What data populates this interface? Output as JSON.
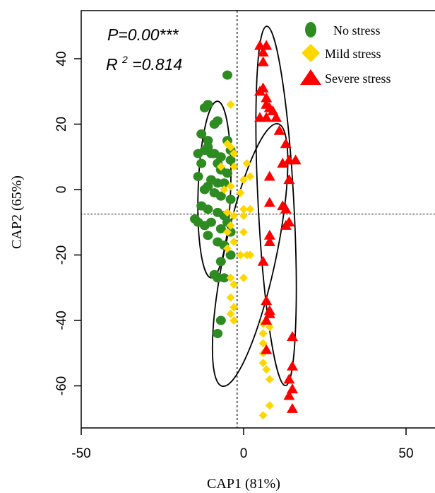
{
  "chart_data": {
    "type": "scatter",
    "title": "",
    "xlabel": "CAP1 (81%)",
    "ylabel": "CAP2 (65%)",
    "xlim": [
      -50,
      60
    ],
    "ylim": [
      -73,
      50
    ],
    "xticks": [
      -50,
      0,
      50
    ],
    "yticks": [
      -60,
      -40,
      -20,
      0,
      20,
      40
    ],
    "reference_lines": {
      "x": -2,
      "y": -7.5
    },
    "annotations": {
      "p_text": "P=0.00***",
      "r2_prefix": "R",
      "r2_sup": "2",
      "r2_value": "=0.814"
    },
    "legend": {
      "placement": "top-right"
    },
    "series": [
      {
        "name": "No stress",
        "marker": "circle",
        "color": "#2e8b22",
        "points": [
          [
            -5,
            35
          ],
          [
            -11,
            26
          ],
          [
            -12,
            25
          ],
          [
            -8,
            21
          ],
          [
            -9,
            20
          ],
          [
            -13,
            17
          ],
          [
            -11,
            15
          ],
          [
            -5,
            15
          ],
          [
            -11,
            13
          ],
          [
            -12,
            12
          ],
          [
            -14,
            11
          ],
          [
            -10,
            11
          ],
          [
            -9,
            11
          ],
          [
            -7,
            10
          ],
          [
            -4,
            12
          ],
          [
            -4,
            9
          ],
          [
            -13,
            8
          ],
          [
            -8,
            8
          ],
          [
            -7,
            6
          ],
          [
            -5,
            5
          ],
          [
            -14,
            4
          ],
          [
            -10,
            3
          ],
          [
            -8,
            2
          ],
          [
            -6,
            2
          ],
          [
            -11,
            1
          ],
          [
            -12,
            0
          ],
          [
            -9,
            -1
          ],
          [
            -7,
            -2
          ],
          [
            -4,
            -3
          ],
          [
            -13,
            -5
          ],
          [
            -11,
            -6
          ],
          [
            -8,
            -7
          ],
          [
            -6,
            -8
          ],
          [
            -15,
            -9
          ],
          [
            -14,
            -10
          ],
          [
            -12,
            -11
          ],
          [
            -10,
            -10
          ],
          [
            -5,
            -10
          ],
          [
            -7,
            -12
          ],
          [
            -4,
            -13
          ],
          [
            -11,
            -14
          ],
          [
            -8,
            -16
          ],
          [
            -6,
            -17
          ],
          [
            -4,
            -20
          ],
          [
            -7,
            -22
          ],
          [
            -9,
            -26
          ],
          [
            -8,
            -27
          ],
          [
            -6,
            -27
          ],
          [
            -7,
            -40
          ],
          [
            -8,
            -44
          ]
        ]
      },
      {
        "name": "Mild stress",
        "marker": "diamond",
        "color": "#ffd700",
        "points": [
          [
            -4,
            26
          ],
          [
            -5,
            14
          ],
          [
            -4,
            13
          ],
          [
            -3,
            11
          ],
          [
            -7,
            7
          ],
          [
            -3,
            7
          ],
          [
            1,
            8
          ],
          [
            -6,
            0
          ],
          [
            -4,
            1
          ],
          [
            -1,
            -1
          ],
          [
            0,
            3
          ],
          [
            2,
            4
          ],
          [
            0,
            -6
          ],
          [
            -5,
            -7
          ],
          [
            -3,
            -8
          ],
          [
            0,
            -8
          ],
          [
            2,
            -6
          ],
          [
            -4,
            -11
          ],
          [
            -5,
            -13
          ],
          [
            0,
            -13
          ],
          [
            -3,
            -16
          ],
          [
            -5,
            -18
          ],
          [
            1,
            -20
          ],
          [
            2,
            -20
          ],
          [
            -1,
            -20
          ],
          [
            -4,
            -27
          ],
          [
            -3,
            -29
          ],
          [
            0,
            -27
          ],
          [
            -4,
            -33
          ],
          [
            -3,
            -36
          ],
          [
            -4,
            -38
          ],
          [
            -3,
            -40
          ],
          [
            6,
            -41
          ],
          [
            8,
            -42
          ],
          [
            6,
            -44
          ],
          [
            6,
            -47
          ],
          [
            6,
            -50
          ],
          [
            6,
            -53
          ],
          [
            7,
            -55
          ],
          [
            8,
            -58
          ],
          [
            6,
            -69
          ],
          [
            8,
            -66
          ]
        ]
      },
      {
        "name": "Severe stress",
        "marker": "triangle",
        "color": "#ff0000",
        "points": [
          [
            5,
            44
          ],
          [
            6,
            42
          ],
          [
            7,
            44
          ],
          [
            6,
            39
          ],
          [
            6,
            31
          ],
          [
            5,
            30
          ],
          [
            7,
            28
          ],
          [
            7,
            26
          ],
          [
            8,
            25
          ],
          [
            5,
            22
          ],
          [
            7,
            22
          ],
          [
            9,
            24
          ],
          [
            10,
            22
          ],
          [
            11,
            18
          ],
          [
            13,
            14
          ],
          [
            14,
            9
          ],
          [
            12,
            8
          ],
          [
            16,
            9
          ],
          [
            8,
            4
          ],
          [
            14,
            3
          ],
          [
            12,
            -5
          ],
          [
            13,
            -6
          ],
          [
            8,
            -4
          ],
          [
            13,
            -11
          ],
          [
            14,
            -10
          ],
          [
            8,
            -14
          ],
          [
            8,
            -16
          ],
          [
            6,
            -22
          ],
          [
            7,
            -34
          ],
          [
            8,
            -37
          ],
          [
            8,
            -38
          ],
          [
            7,
            -40
          ],
          [
            15,
            -45
          ],
          [
            7,
            -49
          ],
          [
            15,
            -54
          ],
          [
            14,
            -58
          ],
          [
            15,
            -61
          ],
          [
            14,
            -63
          ],
          [
            15,
            -67
          ]
        ]
      }
    ],
    "ellipses": [
      {
        "series": "No stress",
        "center": [
          -9,
          0
        ],
        "semi_axes": [
          5,
          27
        ],
        "angle_deg": 2
      },
      {
        "series": "Mild stress",
        "center": [
          2,
          -20
        ],
        "semi_axes": [
          8,
          41
        ],
        "angle_deg": 12
      },
      {
        "series": "Severe stress",
        "center": [
          10,
          -5
        ],
        "semi_axes": [
          5.5,
          55
        ],
        "angle_deg": -3
      }
    ]
  }
}
